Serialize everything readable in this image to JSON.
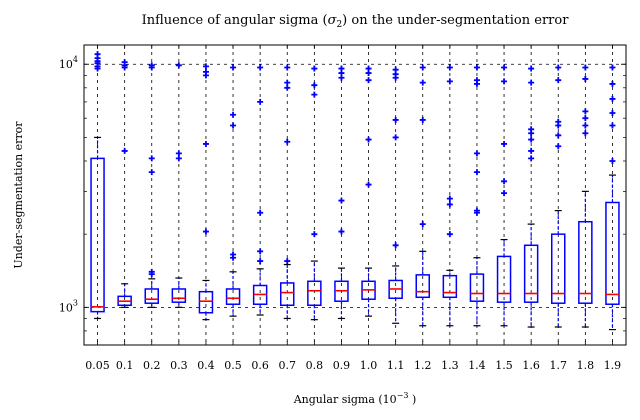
{
  "chart_data": {
    "type": "box",
    "title": "Influence of angular sigma (σ₂) on the under-segmentation error",
    "title_parts": {
      "lead": "Influence of angular sigma (",
      "sigma": "σ",
      "sub": "2",
      "tail": ") on the under-segmentation error"
    },
    "xlabel": "Angular sigma (10⁻³ )",
    "xlabel_parts": {
      "lead": "Angular sigma (10",
      "exp": "−3",
      "tail": " )"
    },
    "ylabel": "Under-segmentation error",
    "yscale": "log",
    "ylim": [
      700,
      12000
    ],
    "yticks": [
      {
        "value": 1000,
        "base": "10",
        "exp": "3"
      },
      {
        "value": 10000,
        "base": "10",
        "exp": "4"
      }
    ],
    "grid": "vertical dashed at each category, horizontal dashed at decades",
    "colors": {
      "box": "#0000ff",
      "median": "#ff0000",
      "outlier": "#0000ff",
      "grid": "#000000"
    },
    "categories": [
      "0.05",
      "0.1",
      "0.2",
      "0.3",
      "0.4",
      "0.5",
      "0.6",
      "0.7",
      "0.8",
      "0.9",
      "1.0",
      "1.1",
      "1.2",
      "1.3",
      "1.4",
      "1.5",
      "1.6",
      "1.7",
      "1.8",
      "1.9"
    ],
    "boxes": [
      {
        "q1": 960,
        "median": 1005,
        "q3": 4100,
        "whislo": 900,
        "whishi": 5000,
        "outliers": [
          9600,
          9800,
          10100,
          10300,
          10600,
          11000
        ]
      },
      {
        "q1": 1020,
        "median": 1060,
        "q3": 1110,
        "whislo": 1000,
        "whishi": 1250,
        "outliers": [
          4400,
          9700,
          9900,
          10200
        ]
      },
      {
        "q1": 1040,
        "median": 1080,
        "q3": 1190,
        "whislo": 1000,
        "whishi": 1310,
        "outliers": [
          1370,
          1400,
          3600,
          4100,
          9700,
          9900
        ]
      },
      {
        "q1": 1050,
        "median": 1090,
        "q3": 1190,
        "whislo": 1000,
        "whishi": 1320,
        "outliers": [
          4100,
          4300,
          9900
        ]
      },
      {
        "q1": 950,
        "median": 1060,
        "q3": 1160,
        "whislo": 890,
        "whishi": 1290,
        "outliers": [
          2050,
          4700,
          9000,
          9300,
          9800
        ]
      },
      {
        "q1": 1030,
        "median": 1090,
        "q3": 1190,
        "whislo": 920,
        "whishi": 1400,
        "outliers": [
          1600,
          1650,
          5600,
          6200,
          9700
        ]
      },
      {
        "q1": 1030,
        "median": 1130,
        "q3": 1230,
        "whislo": 930,
        "whishi": 1440,
        "outliers": [
          1550,
          1700,
          2450,
          7000,
          9700
        ]
      },
      {
        "q1": 1020,
        "median": 1150,
        "q3": 1260,
        "whislo": 900,
        "whishi": 1500,
        "outliers": [
          1550,
          4800,
          8000,
          8400,
          9700
        ]
      },
      {
        "q1": 1020,
        "median": 1170,
        "q3": 1280,
        "whislo": 890,
        "whishi": 1550,
        "outliers": [
          2000,
          7500,
          8200,
          9600
        ]
      },
      {
        "q1": 1060,
        "median": 1170,
        "q3": 1280,
        "whislo": 900,
        "whishi": 1450,
        "outliers": [
          2050,
          2750,
          8800,
          9200,
          9600
        ]
      },
      {
        "q1": 1080,
        "median": 1180,
        "q3": 1280,
        "whislo": 920,
        "whishi": 1450,
        "outliers": [
          3200,
          4900,
          8600,
          9200,
          9600
        ]
      },
      {
        "q1": 1090,
        "median": 1190,
        "q3": 1290,
        "whislo": 860,
        "whishi": 1480,
        "outliers": [
          1800,
          5000,
          5900,
          8800,
          9100,
          9500
        ]
      },
      {
        "q1": 1100,
        "median": 1160,
        "q3": 1360,
        "whislo": 840,
        "whishi": 1700,
        "outliers": [
          2200,
          5900,
          8400,
          9700
        ]
      },
      {
        "q1": 1100,
        "median": 1150,
        "q3": 1350,
        "whislo": 840,
        "whishi": 1420,
        "outliers": [
          2000,
          2650,
          2800,
          8500,
          9700
        ]
      },
      {
        "q1": 1060,
        "median": 1140,
        "q3": 1370,
        "whislo": 840,
        "whishi": 1600,
        "outliers": [
          2450,
          2500,
          3600,
          4300,
          8300,
          8600,
          9700
        ]
      },
      {
        "q1": 1050,
        "median": 1140,
        "q3": 1620,
        "whislo": 840,
        "whishi": 1900,
        "outliers": [
          2950,
          3300,
          4700,
          8500,
          9700
        ]
      },
      {
        "q1": 1050,
        "median": 1140,
        "q3": 1800,
        "whislo": 830,
        "whishi": 2200,
        "outliers": [
          4100,
          4400,
          4900,
          5200,
          5400,
          8400,
          9600
        ]
      },
      {
        "q1": 1040,
        "median": 1140,
        "q3": 2000,
        "whislo": 830,
        "whishi": 2500,
        "outliers": [
          4600,
          5100,
          5600,
          5800,
          8600,
          9700
        ]
      },
      {
        "q1": 1040,
        "median": 1140,
        "q3": 2250,
        "whislo": 830,
        "whishi": 3000,
        "outliers": [
          5200,
          5600,
          6000,
          6400,
          8700,
          9700
        ]
      },
      {
        "q1": 1030,
        "median": 1130,
        "q3": 2700,
        "whislo": 810,
        "whishi": 3500,
        "outliers": [
          4000,
          5600,
          6300,
          7200,
          8300,
          9700
        ]
      }
    ]
  }
}
